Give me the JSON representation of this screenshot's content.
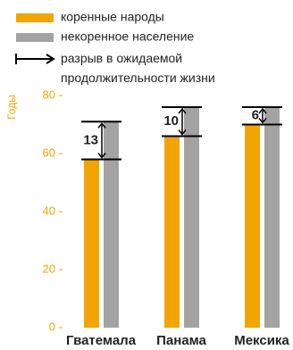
{
  "chart_data": {
    "type": "bar",
    "y_label": "Годы",
    "categories": [
      "Гватемала",
      "Панама",
      "Мексика"
    ],
    "series": [
      {
        "name": "коренные народы",
        "color": "#f0a500",
        "values": [
          58,
          66,
          70
        ]
      },
      {
        "name": "некоренное население",
        "color": "#a3a3a3",
        "values": [
          71,
          76,
          76
        ]
      }
    ],
    "gap_legend": "разрыв в ожидаемой продолжительности жизни",
    "gaps": [
      13,
      10,
      6
    ],
    "ylim": [
      0,
      80
    ],
    "yticks": [
      0,
      20,
      40,
      60,
      80
    ]
  }
}
